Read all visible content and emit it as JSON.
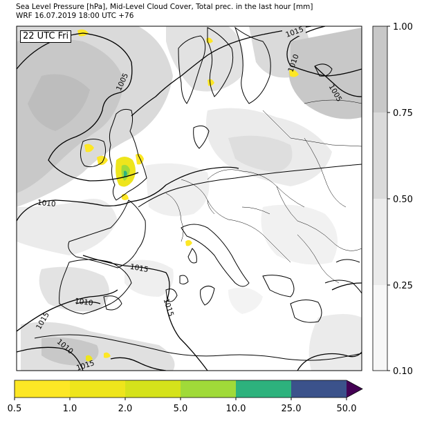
{
  "header": {
    "title_line1": "Sea Level Pressure [hPa], Mid-Level Cloud Cover, Total prec. in the last hour [mm]",
    "title_line2": "WRF 16.07.2019 18:00 UTC +76"
  },
  "map": {
    "time_label": "22 UTC Fri",
    "isobar_labels": [
      "1015",
      "1010",
      "1005",
      "1005",
      "1010",
      "1015",
      "1010",
      "1015",
      "1015",
      "1010",
      "1015"
    ]
  },
  "cloud_colorbar": {
    "ticks": [
      "1.00",
      "0.75",
      "0.50",
      "0.25",
      "0.10"
    ],
    "colors": [
      "#c8c8c8",
      "#dadada",
      "#ebebeb",
      "#f7f7f7"
    ]
  },
  "precip_colorbar": {
    "ticks": [
      "0.5",
      "1.0",
      "2.0",
      "5.0",
      "10.0",
      "25.0",
      "50.0"
    ],
    "colors": [
      "#fde725",
      "#eee51c",
      "#d5e21b",
      "#a0da39",
      "#2db27d",
      "#3b528b",
      "#440154"
    ]
  }
}
